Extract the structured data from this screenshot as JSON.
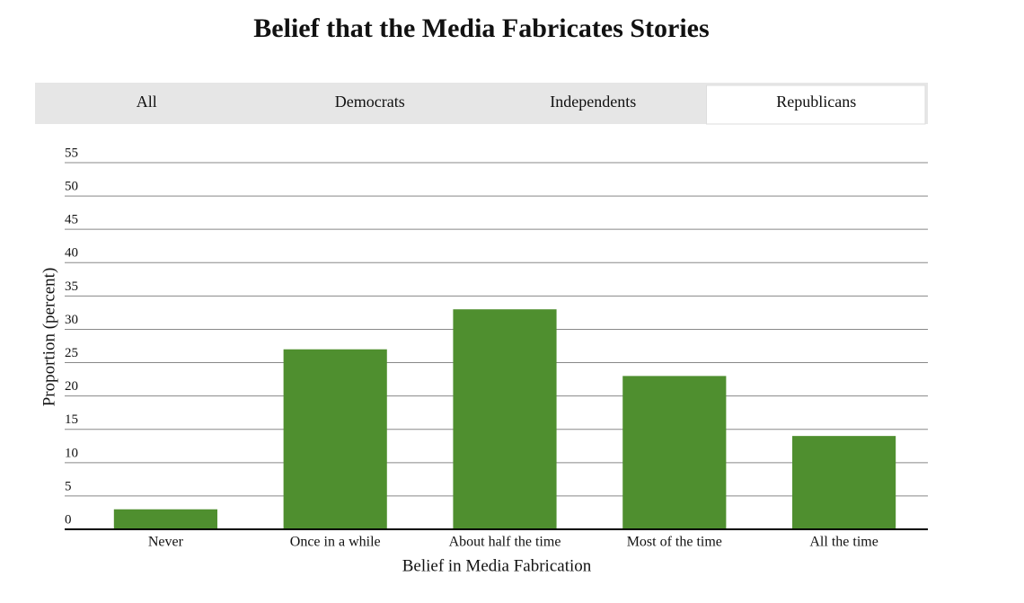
{
  "tabs": {
    "items": [
      "All",
      "Democrats",
      "Independents",
      "Republicans"
    ],
    "active": 3
  },
  "chart_data": {
    "type": "bar",
    "title": "Belief that the Media Fabricates Stories",
    "x_label": "Belief in Media Fabrication",
    "y_label": "Proportion (percent)",
    "categories": [
      "Never",
      "Once in a while",
      "About half the time",
      "Most of the time",
      "All the time"
    ],
    "values": [
      3,
      27,
      33,
      23,
      14
    ],
    "color": "#4f8f2f",
    "ylim": [
      0,
      55
    ],
    "yticks": [
      0,
      5,
      10,
      15,
      20,
      25,
      30,
      35,
      40,
      45,
      50,
      55
    ],
    "grid": true
  }
}
